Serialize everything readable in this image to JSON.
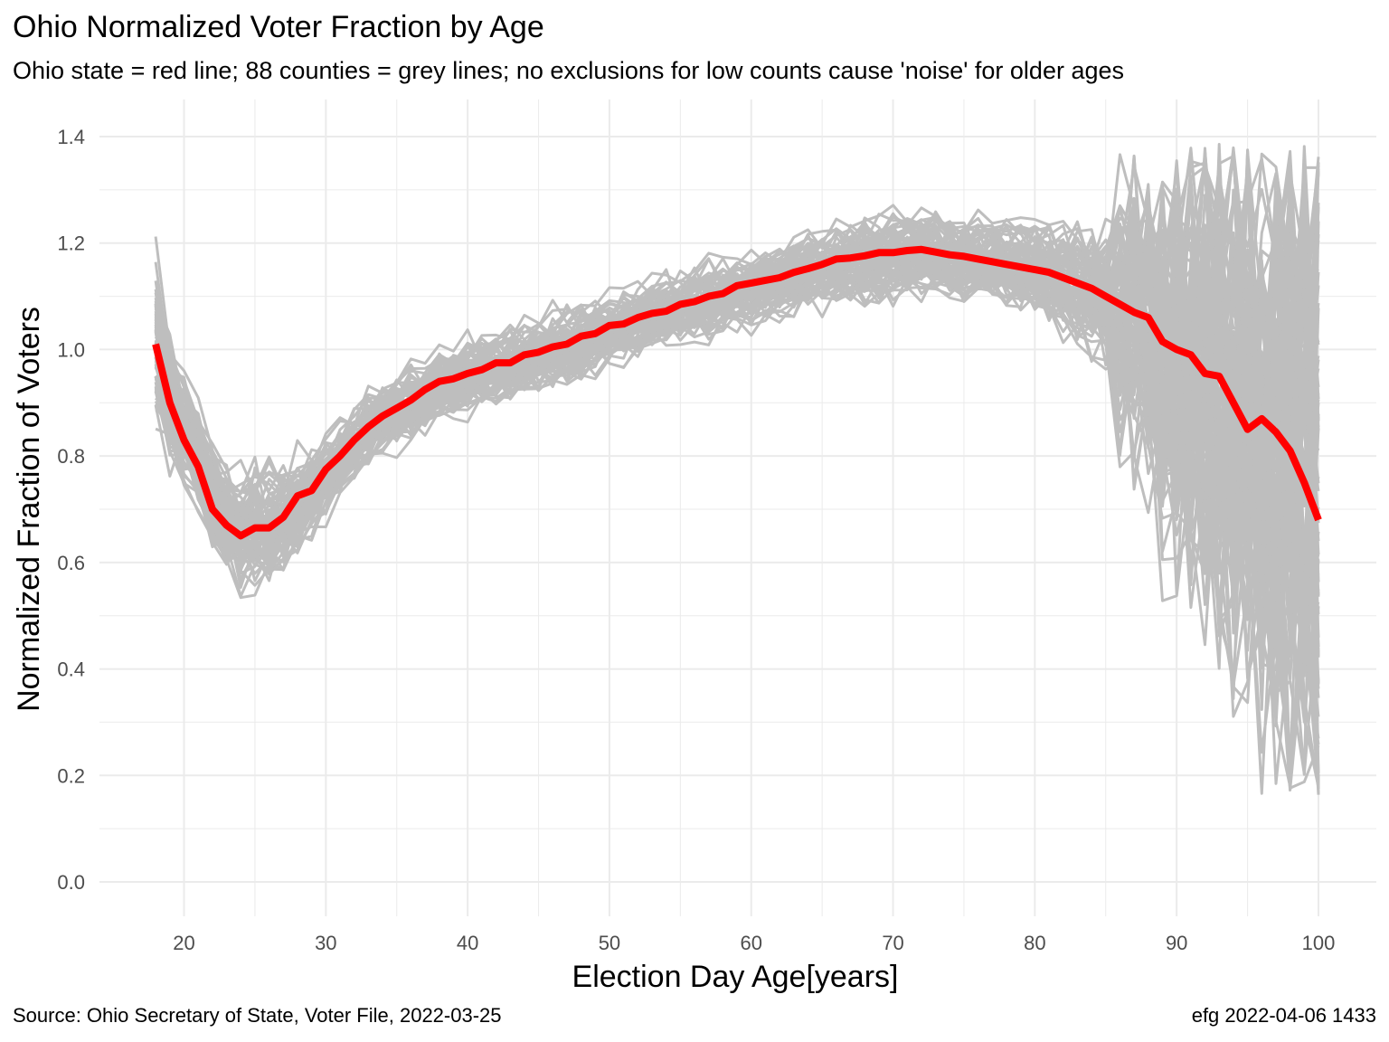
{
  "chart_data": {
    "type": "line",
    "title": "Ohio Normalized Voter Fraction by Age",
    "subtitle": "Ohio state = red line; 88 counties = grey lines; no exclusions for low counts cause 'noise' for older ages",
    "xlabel": "Election Day Age[years]",
    "ylabel": "Normalized Fraction of Voters",
    "xlim": [
      18,
      100
    ],
    "ylim": [
      0,
      1.4
    ],
    "x_ticks": [
      20,
      30,
      40,
      50,
      60,
      70,
      80,
      90,
      100
    ],
    "y_ticks": [
      "0.0",
      "0.2",
      "0.4",
      "0.6",
      "0.8",
      "1.0",
      "1.2",
      "1.4"
    ],
    "grid": true,
    "legend": "none",
    "caption_left": "Source:  Ohio Secretary of State, Voter File, 2022-03-25",
    "caption_right": "efg 2022-04-06 1433",
    "colors": {
      "state": "#ff0000",
      "county": "#bebebe",
      "grid": "#ebebeb",
      "tick_text": "#4d4d4d"
    },
    "county_count": 88,
    "series": [
      {
        "name": "Ohio state",
        "x": [
          18,
          19,
          20,
          21,
          22,
          23,
          24,
          25,
          26,
          27,
          28,
          29,
          30,
          31,
          32,
          33,
          34,
          35,
          36,
          37,
          38,
          39,
          40,
          41,
          42,
          43,
          44,
          45,
          46,
          47,
          48,
          49,
          50,
          51,
          52,
          53,
          54,
          55,
          56,
          57,
          58,
          59,
          60,
          61,
          62,
          63,
          64,
          65,
          66,
          67,
          68,
          69,
          70,
          71,
          72,
          73,
          74,
          75,
          76,
          77,
          78,
          79,
          80,
          81,
          82,
          83,
          84,
          85,
          86,
          87,
          88,
          89,
          90,
          91,
          92,
          93,
          94,
          95,
          96,
          97,
          98,
          99,
          100
        ],
        "values": [
          1.01,
          0.9,
          0.83,
          0.78,
          0.7,
          0.67,
          0.65,
          0.665,
          0.665,
          0.685,
          0.725,
          0.735,
          0.775,
          0.8,
          0.83,
          0.855,
          0.875,
          0.89,
          0.905,
          0.925,
          0.94,
          0.945,
          0.955,
          0.962,
          0.975,
          0.975,
          0.99,
          0.995,
          1.005,
          1.01,
          1.025,
          1.03,
          1.045,
          1.048,
          1.06,
          1.068,
          1.072,
          1.085,
          1.09,
          1.1,
          1.105,
          1.12,
          1.125,
          1.13,
          1.135,
          1.145,
          1.152,
          1.16,
          1.17,
          1.172,
          1.176,
          1.182,
          1.182,
          1.186,
          1.188,
          1.183,
          1.178,
          1.175,
          1.17,
          1.165,
          1.16,
          1.155,
          1.15,
          1.145,
          1.135,
          1.125,
          1.115,
          1.1,
          1.085,
          1.07,
          1.06,
          1.015,
          1.0,
          0.99,
          0.955,
          0.95,
          0.9,
          0.85,
          0.87,
          0.845,
          0.81,
          0.75,
          0.68
        ]
      }
    ],
    "county_band": {
      "x": [
        18,
        19,
        20,
        21,
        22,
        23,
        24,
        25,
        26,
        27,
        28,
        29,
        30,
        32,
        34,
        36,
        38,
        40,
        42,
        44,
        46,
        48,
        50,
        52,
        54,
        56,
        58,
        60,
        62,
        64,
        66,
        68,
        70,
        72,
        74,
        76,
        78,
        80,
        82,
        84,
        86,
        88,
        90,
        92,
        94,
        96,
        98,
        100
      ],
      "center": [
        1.0,
        0.91,
        0.85,
        0.8,
        0.72,
        0.68,
        0.66,
        0.665,
        0.665,
        0.68,
        0.71,
        0.73,
        0.76,
        0.82,
        0.87,
        0.9,
        0.93,
        0.95,
        0.965,
        0.98,
        0.995,
        1.015,
        1.035,
        1.055,
        1.07,
        1.085,
        1.1,
        1.115,
        1.13,
        1.145,
        1.16,
        1.17,
        1.175,
        1.18,
        1.175,
        1.17,
        1.16,
        1.15,
        1.13,
        1.11,
        1.08,
        1.04,
        0.98,
        0.94,
        0.9,
        0.86,
        0.82,
        0.72
      ],
      "spread": [
        0.12,
        0.09,
        0.08,
        0.08,
        0.08,
        0.08,
        0.09,
        0.09,
        0.09,
        0.08,
        0.07,
        0.06,
        0.06,
        0.05,
        0.05,
        0.05,
        0.05,
        0.05,
        0.05,
        0.05,
        0.05,
        0.05,
        0.05,
        0.05,
        0.05,
        0.05,
        0.05,
        0.05,
        0.05,
        0.05,
        0.055,
        0.06,
        0.06,
        0.06,
        0.06,
        0.06,
        0.06,
        0.07,
        0.08,
        0.09,
        0.11,
        0.14,
        0.2,
        0.24,
        0.27,
        0.3,
        0.33,
        0.4
      ]
    }
  }
}
